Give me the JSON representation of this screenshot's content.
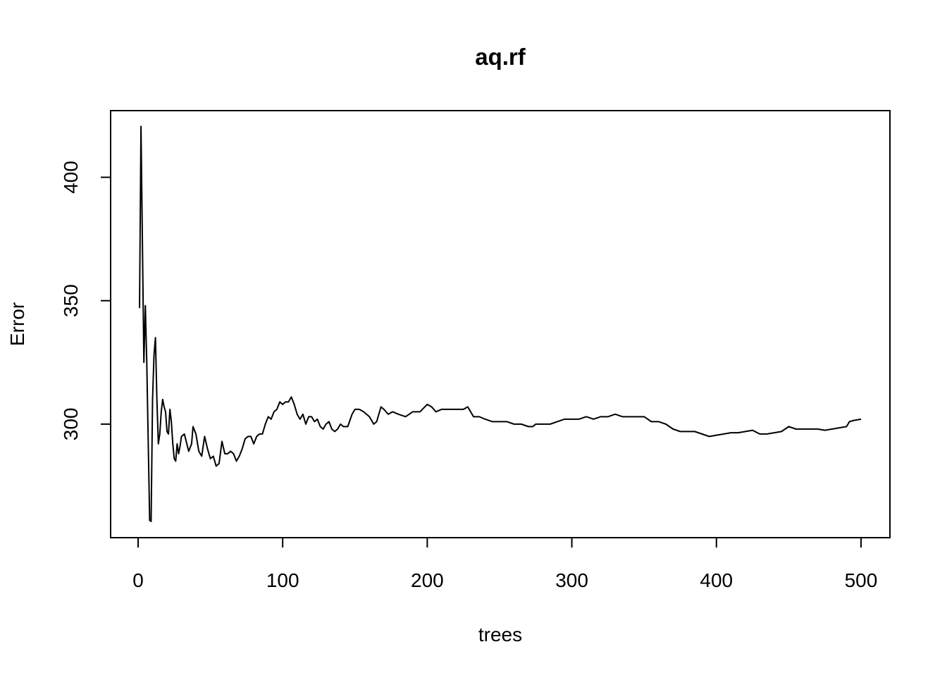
{
  "chart_data": {
    "type": "line",
    "title": "aq.rf",
    "x_label": "trees",
    "y_label": "Error",
    "x": [
      1,
      2,
      4,
      5,
      6,
      8,
      9,
      10,
      11,
      12,
      13,
      14,
      15,
      16,
      17,
      18,
      19,
      20,
      21,
      22,
      23,
      24,
      25,
      26,
      27,
      28,
      29,
      30,
      32,
      35,
      37,
      38,
      40,
      42,
      44,
      46,
      48,
      50,
      52,
      54,
      56,
      58,
      60,
      62,
      64,
      66,
      68,
      70,
      72,
      74,
      76,
      78,
      80,
      82,
      84,
      86,
      88,
      90,
      92,
      94,
      96,
      98,
      100,
      102,
      104,
      106,
      108,
      110,
      112,
      114,
      116,
      118,
      120,
      122,
      124,
      126,
      128,
      130,
      132,
      134,
      136,
      138,
      140,
      142,
      145,
      148,
      150,
      153,
      156,
      158,
      160,
      163,
      165,
      168,
      170,
      173,
      176,
      180,
      185,
      190,
      195,
      200,
      203,
      206,
      210,
      215,
      220,
      225,
      228,
      232,
      236,
      240,
      245,
      250,
      255,
      260,
      265,
      270,
      273,
      275,
      280,
      285,
      290,
      295,
      300,
      305,
      310,
      315,
      320,
      325,
      330,
      335,
      340,
      345,
      350,
      355,
      360,
      365,
      370,
      375,
      380,
      385,
      390,
      395,
      400,
      405,
      410,
      415,
      420,
      425,
      430,
      435,
      440,
      445,
      450,
      455,
      460,
      465,
      470,
      475,
      480,
      485,
      490,
      492,
      495,
      500
    ],
    "series": [
      {
        "name": "Error",
        "color": "#000000",
        "values": [
          347,
          420.6,
          325,
          348,
          325,
          261,
          260.6,
          310,
          328,
          335,
          310,
          292,
          296,
          305,
          310,
          307,
          305,
          297,
          296,
          306,
          301,
          292,
          286,
          285,
          292,
          288,
          291,
          295,
          296,
          289,
          292,
          299,
          296,
          289,
          287,
          295,
          290,
          286,
          287,
          283,
          284,
          293,
          288,
          288,
          289,
          288,
          285,
          287,
          290,
          294,
          295,
          295,
          292,
          295,
          296,
          296,
          300,
          303,
          302,
          305,
          306,
          309,
          308,
          309,
          309,
          311,
          308,
          304,
          302,
          304,
          300,
          303,
          303,
          301,
          302,
          299,
          298,
          300,
          301,
          298,
          297,
          298,
          300,
          299,
          299,
          304,
          306,
          306,
          305,
          304,
          303,
          300,
          301,
          307,
          306,
          304,
          305,
          304,
          303,
          305,
          305,
          308,
          307,
          305,
          306,
          306,
          306,
          306,
          307,
          303,
          303,
          302,
          301,
          301,
          301,
          300,
          300,
          299,
          299,
          300,
          300,
          300,
          301,
          302,
          302,
          302,
          303,
          302,
          303,
          303,
          304,
          303,
          303,
          303,
          303,
          301,
          301,
          300,
          298,
          297,
          297,
          297,
          296,
          295,
          295.5,
          296,
          296.5,
          296.5,
          297,
          297.5,
          296,
          296,
          296.5,
          297,
          299,
          298,
          298,
          298,
          298,
          297.5,
          298,
          298.5,
          299,
          301,
          301.5,
          302
        ]
      }
    ],
    "xlim": [
      -19,
      520
    ],
    "ylim": [
      254,
      427
    ],
    "xticks": [
      0,
      100,
      200,
      300,
      400,
      500
    ],
    "yticks": [
      300,
      350,
      400
    ]
  }
}
